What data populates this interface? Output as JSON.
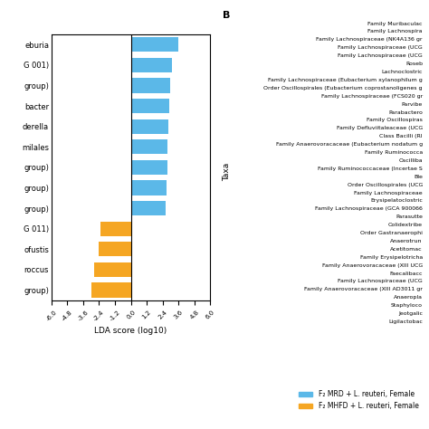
{
  "chart_data": {
    "type": "bar",
    "orientation": "horizontal",
    "categories": [
      "eburia",
      "G 001)",
      "group)",
      "bacter",
      "derella",
      "milales",
      "group)",
      "group)",
      "group)",
      "G 011)",
      "ofustis",
      "roccus",
      "group)"
    ],
    "series": [
      {
        "name": "F₂ MRD + L. reuteri, Female",
        "color": "#5BB8E8",
        "values": [
          3.6,
          3.1,
          3.0,
          2.9,
          2.85,
          2.8,
          2.75,
          2.7,
          2.65,
          null,
          null,
          null,
          null
        ]
      },
      {
        "name": "F₂ MHFD + L. reuteri, Female",
        "color": "#F5A623",
        "values": [
          null,
          null,
          null,
          null,
          null,
          null,
          null,
          null,
          null,
          -2.3,
          -2.45,
          -2.8,
          -3.0
        ]
      }
    ],
    "xlabel": "LDA score (log10)",
    "xlim": [
      -6.0,
      6.0
    ],
    "xticks": [
      -6.0,
      -4.8,
      -3.6,
      -2.4,
      -1.2,
      0.0,
      1.2,
      2.4,
      3.6,
      4.8,
      6.0
    ],
    "legend": "lower right",
    "annotations": [
      "B",
      "Taxa",
      "Family Muribaculac",
      "Family Lachnospira",
      "Family Lachnospiraceae (NK4A136 gr",
      "Family Lachnospiraceae (UCG",
      "Family Lachnospiraceae (UCG",
      "Roseb",
      "Lachnoclostric",
      "Family Lachnospiraceae (Eubacterium xylanophilum g",
      "Order Oscillospirales (Eubacterium coprostanoligenes g",
      "Family Lachnospiraceae (FCS020 gr",
      "Parvibe",
      "Parabactero",
      "Family Oscillospiras",
      "Family Defluviitaleaceae (UCG",
      "Class Bacilli (RI",
      "Family Anaerovoracaceae (Eubacterium nodatum g",
      "Family Ruminococca",
      "Oscilliba",
      "Family Ruminococcaceae (Incertae S",
      "Ble",
      "Order Oscillospirales (UCG",
      "Family Lachnospiraceae",
      "Erysipelatoclostric",
      "Family Lachnospiraceae (GCA 900066",
      "Parasutte",
      "Colidextribe",
      "Order Gastranaerophi",
      "Anaerotrun",
      "Acetitomac",
      "Family Erysipelotricha",
      "Family Anaerovoracaceae (XIII UCG",
      "Faecalibacc",
      "Family Lachnospiraceae (UCG",
      "Family Anaerovoracaceae (XIII AD3011 gr",
      "Anaeroplа",
      "Staphyloco",
      "Jeotgalic",
      "Ligilactobac"
    ]
  }
}
